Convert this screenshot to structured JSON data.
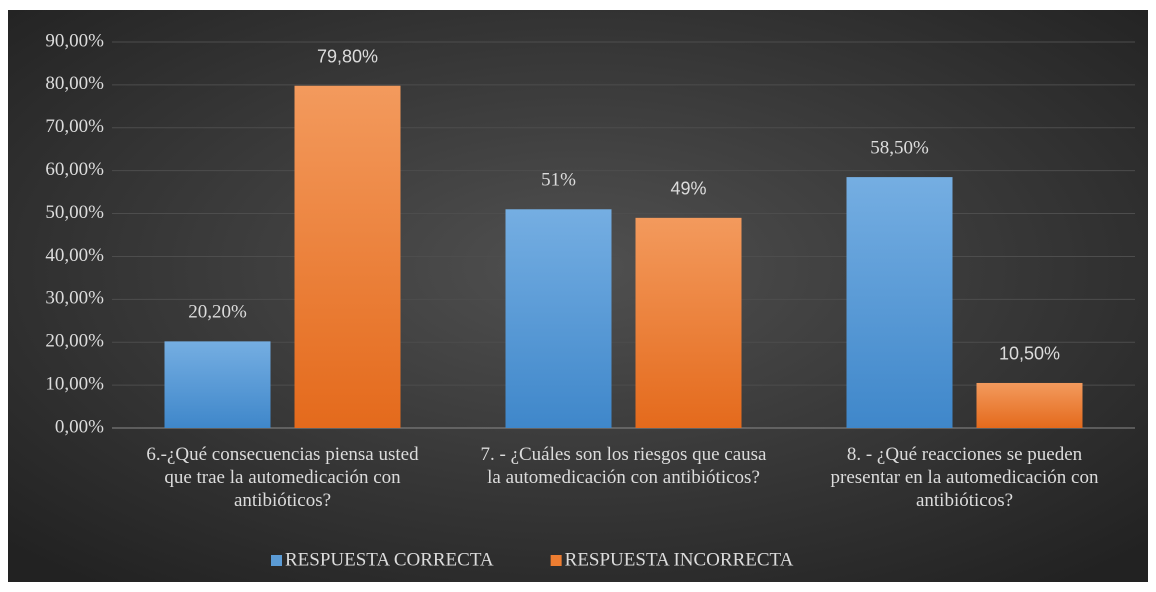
{
  "chart_data": {
    "type": "bar",
    "categories": [
      "6.-¿Qué consecuencias piensa usted que trae la automedicación con antibióticos?",
      "7. - ¿Cuáles son los riesgos que causa la automedicación con antibióticos?",
      "8. - ¿Qué reacciones se pueden presentar en la automedicación con antibióticos?"
    ],
    "series": [
      {
        "name": "RESPUESTA CORRECTA",
        "color": "#5b9bd5",
        "values": [
          20.2,
          51,
          58.5
        ],
        "value_labels": [
          "20,20%",
          "51%",
          "58,50%"
        ]
      },
      {
        "name": "RESPUESTA INCORRECTA",
        "color": "#ed7d31",
        "values": [
          79.8,
          49,
          10.5
        ],
        "value_labels": [
          "79,80%",
          "49%",
          "10,50%"
        ]
      }
    ],
    "ylim": [
      0,
      90
    ],
    "yticks": [
      {
        "value": 0,
        "label": "0,00%"
      },
      {
        "value": 10,
        "label": "10,00%"
      },
      {
        "value": 20,
        "label": "20,00%"
      },
      {
        "value": 30,
        "label": "30,00%"
      },
      {
        "value": 40,
        "label": "40,00%"
      },
      {
        "value": 50,
        "label": "50,00%"
      },
      {
        "value": 60,
        "label": "60,00%"
      },
      {
        "value": 70,
        "label": "70,00%"
      },
      {
        "value": 80,
        "label": "80,00%"
      },
      {
        "value": 90,
        "label": "90,00%"
      }
    ],
    "grid": true,
    "legend": "bottom"
  }
}
